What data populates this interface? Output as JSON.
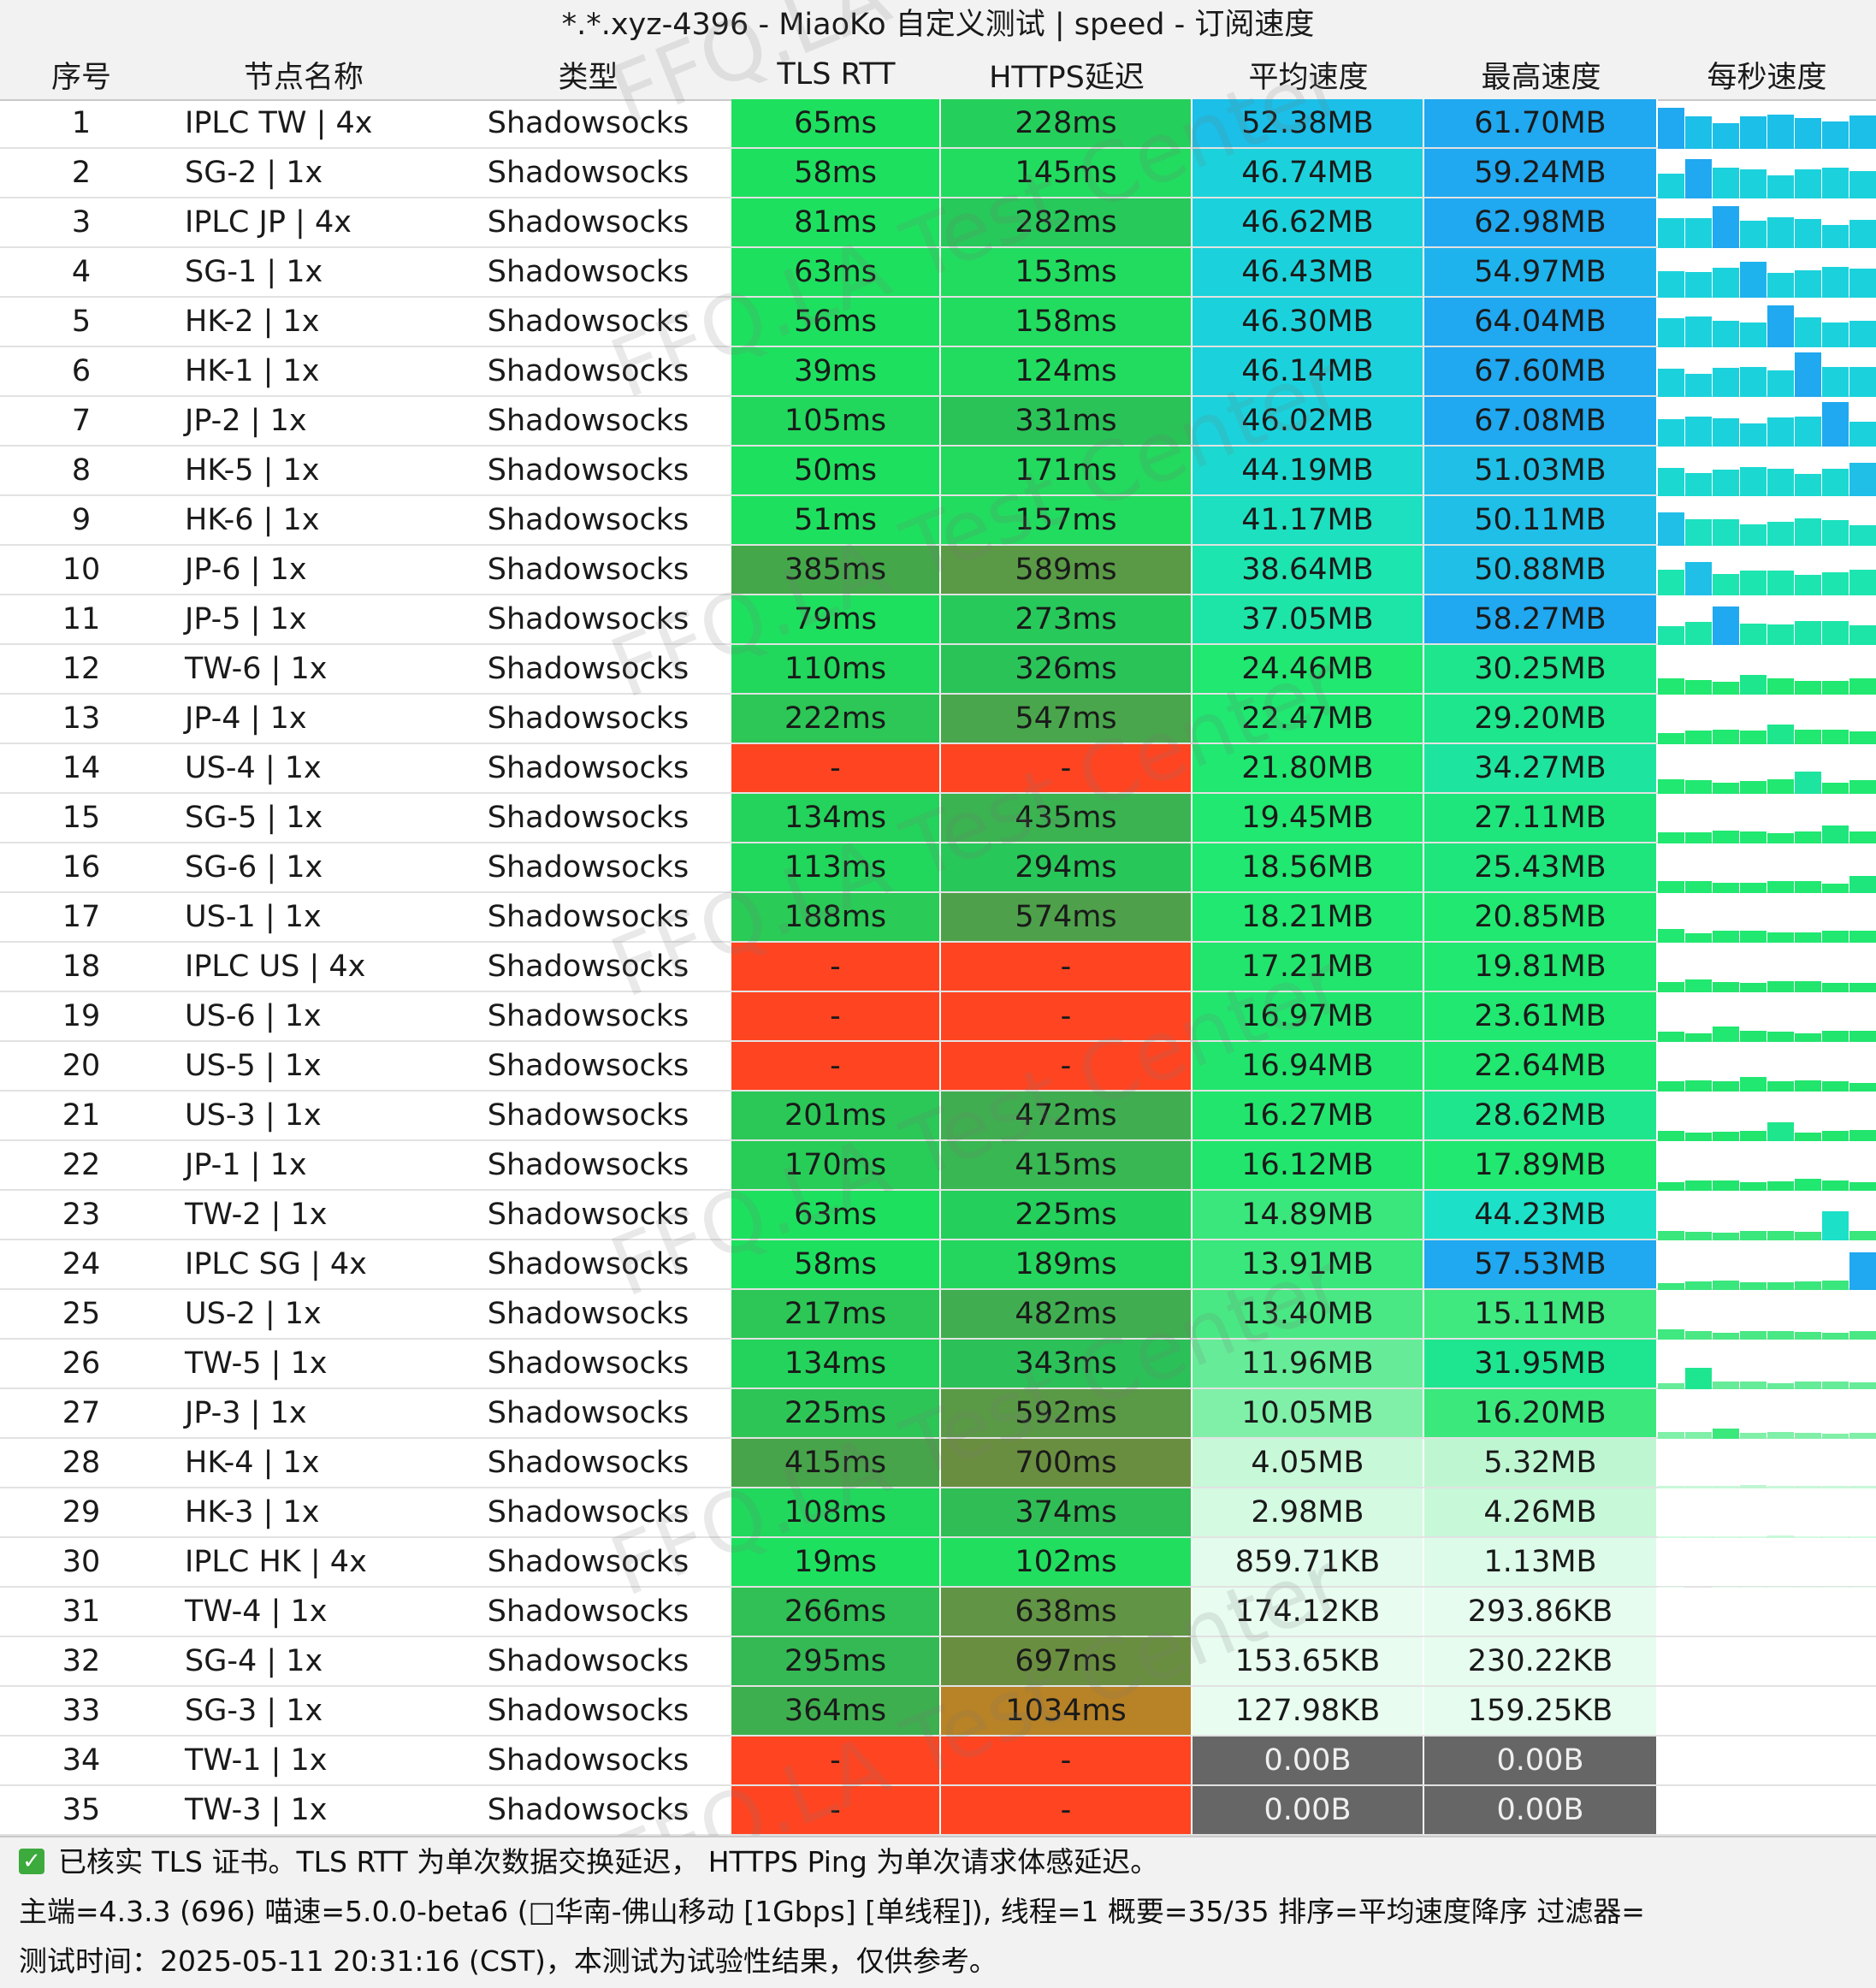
{
  "title": "*.*.xyz-4396 - MiaoKo 自定义测试 | speed - 订阅速度",
  "columns": [
    "序号",
    "节点名称",
    "类型",
    "TLS RTT",
    "HTTPS延迟",
    "平均速度",
    "最高速度",
    "每秒速度"
  ],
  "rows": [
    {
      "idx": "1",
      "name": "IPLC TW | 4x",
      "type": "Shadowsocks",
      "tls": "65ms",
      "https": "228ms",
      "avg": "52.38MB",
      "max": "61.70MB",
      "tls_color": "#1ee05f",
      "https_color": "#25cf5c",
      "avg_color": "#1bbfe8",
      "max_color": "#20a8f0"
    },
    {
      "idx": "2",
      "name": "SG-2 | 1x",
      "type": "Shadowsocks",
      "tls": "58ms",
      "https": "145ms",
      "avg": "46.74MB",
      "max": "59.24MB",
      "tls_color": "#1ee05f",
      "https_color": "#22dc5f",
      "avg_color": "#1bd2dc",
      "max_color": "#20a8f0"
    },
    {
      "idx": "3",
      "name": "IPLC JP | 4x",
      "type": "Shadowsocks",
      "tls": "81ms",
      "https": "282ms",
      "avg": "46.62MB",
      "max": "62.98MB",
      "tls_color": "#1ee05f",
      "https_color": "#27c95a",
      "avg_color": "#1bd2dc",
      "max_color": "#20a8f0"
    },
    {
      "idx": "4",
      "name": "SG-1 | 1x",
      "type": "Shadowsocks",
      "tls": "63ms",
      "https": "153ms",
      "avg": "46.43MB",
      "max": "54.97MB",
      "tls_color": "#1ee05f",
      "https_color": "#22dc5f",
      "avg_color": "#1bd2dc",
      "max_color": "#1fb3ee"
    },
    {
      "idx": "5",
      "name": "HK-2 | 1x",
      "type": "Shadowsocks",
      "tls": "56ms",
      "https": "158ms",
      "avg": "46.30MB",
      "max": "64.04MB",
      "tls_color": "#1ee05f",
      "https_color": "#22dc5f",
      "avg_color": "#1bd2dc",
      "max_color": "#20a8f0"
    },
    {
      "idx": "6",
      "name": "HK-1 | 1x",
      "type": "Shadowsocks",
      "tls": "39ms",
      "https": "124ms",
      "avg": "46.14MB",
      "max": "67.60MB",
      "tls_color": "#1ee05f",
      "https_color": "#22dc5f",
      "avg_color": "#1bd2dc",
      "max_color": "#20a8f0"
    },
    {
      "idx": "7",
      "name": "JP-2 | 1x",
      "type": "Shadowsocks",
      "tls": "105ms",
      "https": "331ms",
      "avg": "46.02MB",
      "max": "67.08MB",
      "tls_color": "#21d85d",
      "https_color": "#2ac358",
      "avg_color": "#1bd2dc",
      "max_color": "#20a8f0"
    },
    {
      "idx": "8",
      "name": "HK-5 | 1x",
      "type": "Shadowsocks",
      "tls": "50ms",
      "https": "171ms",
      "avg": "44.19MB",
      "max": "51.03MB",
      "tls_color": "#1ee05f",
      "https_color": "#23d95e",
      "avg_color": "#1bd9d0",
      "max_color": "#1fbfe8"
    },
    {
      "idx": "9",
      "name": "HK-6 | 1x",
      "type": "Shadowsocks",
      "tls": "51ms",
      "https": "157ms",
      "avg": "41.17MB",
      "max": "50.11MB",
      "tls_color": "#1ee05f",
      "https_color": "#22dc5f",
      "avg_color": "#1ce0c0",
      "max_color": "#1fbfe8"
    },
    {
      "idx": "10",
      "name": "JP-6 | 1x",
      "type": "Shadowsocks",
      "tls": "385ms",
      "https": "589ms",
      "avg": "38.64MB",
      "max": "50.88MB",
      "tls_color": "#44a84a",
      "https_color": "#5a9a46",
      "avg_color": "#1de5b0",
      "max_color": "#1fbfe8"
    },
    {
      "idx": "11",
      "name": "JP-5 | 1x",
      "type": "Shadowsocks",
      "tls": "79ms",
      "https": "273ms",
      "avg": "37.05MB",
      "max": "58.27MB",
      "tls_color": "#1ee05f",
      "https_color": "#27c95a",
      "avg_color": "#1de5a8",
      "max_color": "#20a8f0"
    },
    {
      "idx": "12",
      "name": "TW-6 | 1x",
      "type": "Shadowsocks",
      "tls": "110ms",
      "https": "326ms",
      "avg": "24.46MB",
      "max": "30.25MB",
      "tls_color": "#21d85d",
      "https_color": "#2ac358",
      "avg_color": "#20e870",
      "max_color": "#1ee68c"
    },
    {
      "idx": "13",
      "name": "JP-4 | 1x",
      "type": "Shadowsocks",
      "tls": "222ms",
      "https": "547ms",
      "avg": "22.47MB",
      "max": "29.20MB",
      "tls_color": "#2cc756",
      "https_color": "#4aa64c",
      "avg_color": "#20e870",
      "max_color": "#1ee68c"
    },
    {
      "idx": "14",
      "name": "US-4 | 1x",
      "type": "Shadowsocks",
      "tls": "-",
      "https": "-",
      "avg": "21.80MB",
      "max": "34.27MB",
      "tls_color": "#ff4422",
      "https_color": "#ff4422",
      "avg_color": "#20e870",
      "max_color": "#1de5a0"
    },
    {
      "idx": "15",
      "name": "SG-5 | 1x",
      "type": "Shadowsocks",
      "tls": "134ms",
      "https": "435ms",
      "avg": "19.45MB",
      "max": "27.11MB",
      "tls_color": "#24d35b",
      "https_color": "#3bb351",
      "avg_color": "#20e870",
      "max_color": "#1ee67c"
    },
    {
      "idx": "16",
      "name": "SG-6 | 1x",
      "type": "Shadowsocks",
      "tls": "113ms",
      "https": "294ms",
      "avg": "18.56MB",
      "max": "25.43MB",
      "tls_color": "#21d85d",
      "https_color": "#28c759",
      "avg_color": "#20e870",
      "max_color": "#1ee67c"
    },
    {
      "idx": "17",
      "name": "US-1 | 1x",
      "type": "Shadowsocks",
      "tls": "188ms",
      "https": "574ms",
      "avg": "18.21MB",
      "max": "20.85MB",
      "tls_color": "#2acb57",
      "https_color": "#4ea14a",
      "avg_color": "#20e870",
      "max_color": "#20e870"
    },
    {
      "idx": "18",
      "name": "IPLC US | 4x",
      "type": "Shadowsocks",
      "tls": "-",
      "https": "-",
      "avg": "17.21MB",
      "max": "19.81MB",
      "tls_color": "#ff4422",
      "https_color": "#ff4422",
      "avg_color": "#22e56e",
      "max_color": "#20e870"
    },
    {
      "idx": "19",
      "name": "US-6 | 1x",
      "type": "Shadowsocks",
      "tls": "-",
      "https": "-",
      "avg": "16.97MB",
      "max": "23.61MB",
      "tls_color": "#ff4422",
      "https_color": "#ff4422",
      "avg_color": "#22e56e",
      "max_color": "#20e870"
    },
    {
      "idx": "20",
      "name": "US-5 | 1x",
      "type": "Shadowsocks",
      "tls": "-",
      "https": "-",
      "avg": "16.94MB",
      "max": "22.64MB",
      "tls_color": "#ff4422",
      "https_color": "#ff4422",
      "avg_color": "#22e56e",
      "max_color": "#20e870"
    },
    {
      "idx": "21",
      "name": "US-3 | 1x",
      "type": "Shadowsocks",
      "tls": "201ms",
      "https": "472ms",
      "avg": "16.27MB",
      "max": "28.62MB",
      "tls_color": "#2bc857",
      "https_color": "#40ae50",
      "avg_color": "#22e56e",
      "max_color": "#1ee68c"
    },
    {
      "idx": "22",
      "name": "JP-1 | 1x",
      "type": "Shadowsocks",
      "tls": "170ms",
      "https": "415ms",
      "avg": "16.12MB",
      "max": "17.89MB",
      "tls_color": "#28cd58",
      "https_color": "#38b752",
      "avg_color": "#22e56e",
      "max_color": "#20e870"
    },
    {
      "idx": "23",
      "name": "TW-2 | 1x",
      "type": "Shadowsocks",
      "tls": "63ms",
      "https": "225ms",
      "avg": "14.89MB",
      "max": "44.23MB",
      "tls_color": "#1ee05f",
      "https_color": "#25cf5c",
      "avg_color": "#3ae77c",
      "max_color": "#1ce0c8"
    },
    {
      "idx": "24",
      "name": "IPLC SG | 4x",
      "type": "Shadowsocks",
      "tls": "58ms",
      "https": "189ms",
      "avg": "13.91MB",
      "max": "57.53MB",
      "tls_color": "#1ee05f",
      "https_color": "#24d65d",
      "avg_color": "#3ae77c",
      "max_color": "#20a8f0"
    },
    {
      "idx": "25",
      "name": "US-2 | 1x",
      "type": "Shadowsocks",
      "tls": "217ms",
      "https": "482ms",
      "avg": "13.40MB",
      "max": "15.11MB",
      "tls_color": "#2cc756",
      "https_color": "#40ae50",
      "avg_color": "#4ae884",
      "max_color": "#40e880"
    },
    {
      "idx": "26",
      "name": "TW-5 | 1x",
      "type": "Shadowsocks",
      "tls": "134ms",
      "https": "343ms",
      "avg": "11.96MB",
      "max": "31.95MB",
      "tls_color": "#24d35b",
      "https_color": "#2bc158",
      "avg_color": "#66ec98",
      "max_color": "#1ee690"
    },
    {
      "idx": "27",
      "name": "JP-3 | 1x",
      "type": "Shadowsocks",
      "tls": "225ms",
      "https": "592ms",
      "avg": "10.05MB",
      "max": "16.20MB",
      "tls_color": "#2dc656",
      "https_color": "#5a9a46",
      "avg_color": "#80f0a8",
      "max_color": "#3ae87c"
    },
    {
      "idx": "28",
      "name": "HK-4 | 1x",
      "type": "Shadowsocks",
      "tls": "415ms",
      "https": "700ms",
      "avg": "4.05MB",
      "max": "5.32MB",
      "tls_color": "#48a44a",
      "https_color": "#6a8e40",
      "avg_color": "#c7f8d8",
      "max_color": "#bff6d2"
    },
    {
      "idx": "29",
      "name": "HK-3 | 1x",
      "type": "Shadowsocks",
      "tls": "108ms",
      "https": "374ms",
      "avg": "2.98MB",
      "max": "4.26MB",
      "tls_color": "#21d85d",
      "https_color": "#30bd55",
      "avg_color": "#d4fae2",
      "max_color": "#c7f8d8"
    },
    {
      "idx": "30",
      "name": "IPLC HK | 4x",
      "type": "Shadowsocks",
      "tls": "19ms",
      "https": "102ms",
      "avg": "859.71KB",
      "max": "1.13MB",
      "tls_color": "#1ee05f",
      "https_color": "#21de5f",
      "avg_color": "#e2fbec",
      "max_color": "#dcfbe8"
    },
    {
      "idx": "31",
      "name": "TW-4 | 1x",
      "type": "Shadowsocks",
      "tls": "266ms",
      "https": "638ms",
      "avg": "174.12KB",
      "max": "293.86KB",
      "tls_color": "#31c055",
      "https_color": "#619444",
      "avg_color": "#e8fcf0",
      "max_color": "#e6fcef"
    },
    {
      "idx": "32",
      "name": "SG-4 | 1x",
      "type": "Shadowsocks",
      "tls": "295ms",
      "https": "697ms",
      "avg": "153.65KB",
      "max": "230.22KB",
      "tls_color": "#34b954",
      "https_color": "#6a8e40",
      "avg_color": "#e8fcf0",
      "max_color": "#e6fcef"
    },
    {
      "idx": "33",
      "name": "SG-3 | 1x",
      "type": "Shadowsocks",
      "tls": "364ms",
      "https": "1034ms",
      "avg": "127.98KB",
      "max": "159.25KB",
      "tls_color": "#3eaf4f",
      "https_color": "#b88226",
      "avg_color": "#e8fcf0",
      "max_color": "#e6fcef"
    },
    {
      "idx": "34",
      "name": "TW-1 | 1x",
      "type": "Shadowsocks",
      "tls": "-",
      "https": "-",
      "avg": "0.00B",
      "max": "0.00B",
      "tls_color": "#ff4422",
      "https_color": "#ff4422",
      "avg_color": "#666666",
      "max_color": "#666666"
    },
    {
      "idx": "35",
      "name": "TW-3 | 1x",
      "type": "Shadowsocks",
      "tls": "-",
      "https": "-",
      "avg": "0.00B",
      "max": "0.00B",
      "tls_color": "#ff4422",
      "https_color": "#ff4422",
      "avg_color": "#666666",
      "max_color": "#666666"
    }
  ],
  "watermark": "FFQ.LA Test Center",
  "footer": {
    "line1": "已核实 TLS 证书。TLS RTT 为单次数据交换延迟， HTTPS Ping 为单次请求体感延迟。",
    "line2": "主端=4.3.3 (696) 喵速=5.0.0-beta6 (\u0000华南-佛山移动 [1Gbps] [单线程]), 线程=1 概要=35/35 排序=平均速度降序 过滤器=",
    "line3": "测试时间：2025-05-11 20:31:16 (CST)，本测试为试验性结果，仅供参考。",
    "check_icon": "check-square-icon"
  },
  "colors": {
    "header_bg": "#f2f2f2",
    "fail_red": "#ff4422",
    "zero_gray": "#666666"
  }
}
